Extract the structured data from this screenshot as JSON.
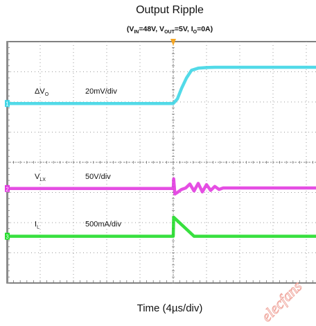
{
  "title": "Output Ripple",
  "subtitle": {
    "parts": [
      {
        "t": "(V",
        "sub": false
      },
      {
        "t": "IN",
        "sub": true
      },
      {
        "t": "=48V, V",
        "sub": false
      },
      {
        "t": "OUT",
        "sub": true
      },
      {
        "t": "=5V, I",
        "sub": false
      },
      {
        "t": "O",
        "sub": true
      },
      {
        "t": "=0A)",
        "sub": false
      }
    ]
  },
  "chart_data": {
    "type": "line",
    "title": "Output Ripple",
    "subtitle": "(VIN=48V, VOUT=5V, IO=0A)",
    "xlabel": "Time (4µs/div)",
    "ylabel": "",
    "grid": true,
    "x_unit": "µs",
    "xlim": [
      0,
      40
    ],
    "divisions": {
      "x": 10,
      "y": 8
    },
    "trigger_marker": {
      "x": 20,
      "color": "#f5a623"
    },
    "series": [
      {
        "name": "ΔVO",
        "scale": "20mV/div",
        "color": "#3fd6e6",
        "marker": "1",
        "label_parts": [
          {
            "t": "ΔV",
            "sub": false
          },
          {
            "t": "O",
            "sub": true
          }
        ],
        "x": [
          0,
          20,
          20.5,
          21,
          21.6,
          22.2,
          23,
          24,
          25,
          28,
          40
        ],
        "y": [
          1.95,
          1.95,
          2.1,
          2.45,
          2.8,
          3.05,
          3.12,
          3.14,
          3.15,
          3.15,
          3.15
        ]
      },
      {
        "name": "VLX",
        "scale": "50V/div",
        "color": "#e23be0",
        "marker": "2",
        "label_parts": [
          {
            "t": "V",
            "sub": false
          },
          {
            "t": "LX",
            "sub": true
          }
        ],
        "x": [
          0,
          20,
          20.05,
          20.2,
          20.6,
          21,
          21.5,
          22,
          22.5,
          23,
          23.5,
          24,
          24.5,
          25,
          25.5,
          26,
          40
        ],
        "y": [
          -0.87,
          -0.87,
          -0.55,
          -1.05,
          -0.98,
          -0.9,
          -0.85,
          -0.72,
          -0.95,
          -0.7,
          -0.98,
          -0.74,
          -0.93,
          -0.8,
          -0.9,
          -0.85,
          -0.85
        ]
      },
      {
        "name": "IL",
        "scale": "500mA/div",
        "color": "#22dd2a",
        "marker": "3",
        "label_parts": [
          {
            "t": "I",
            "sub": false
          },
          {
            "t": "L",
            "sub": true
          }
        ],
        "x": [
          0,
          20,
          20.05,
          22.5,
          40
        ],
        "y": [
          -2.45,
          -2.45,
          -1.82,
          -2.45,
          -2.45
        ]
      }
    ]
  },
  "watermark": "elecfans"
}
